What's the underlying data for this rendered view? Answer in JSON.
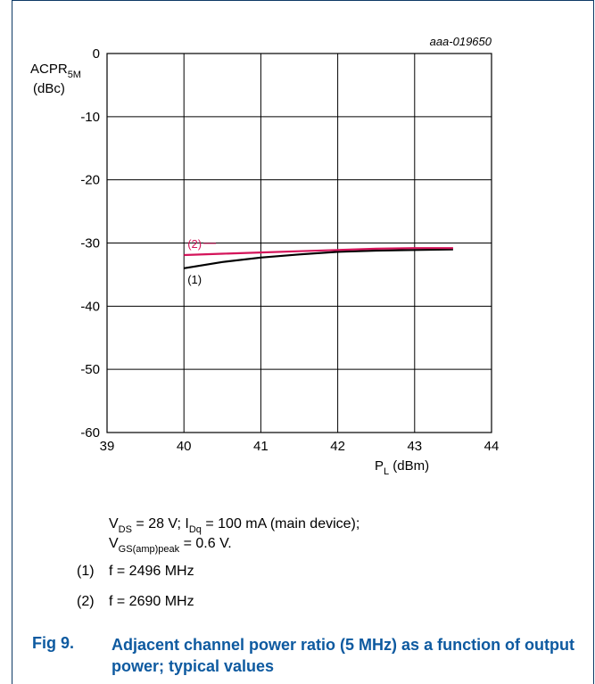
{
  "chart_data": {
    "type": "line",
    "code": "aaa-019650",
    "ylabel_main": "ACPR",
    "ylabel_sub": "5M",
    "ylabel_unit": "(dBc)",
    "xlabel_main": "P",
    "xlabel_sub": "L",
    "xlabel_unit": " (dBm)",
    "xlim": [
      39,
      44
    ],
    "ylim": [
      -60,
      0
    ],
    "xticks": [
      39,
      40,
      41,
      42,
      43,
      44
    ],
    "yticks": [
      0,
      -10,
      -20,
      -30,
      -40,
      -50,
      -60
    ],
    "grid": true,
    "series": [
      {
        "name": "(1)",
        "color": "#000000",
        "x": [
          40.0,
          40.5,
          41.0,
          41.5,
          42.0,
          42.5,
          43.0,
          43.5
        ],
        "y": [
          -34.0,
          -33.0,
          -32.3,
          -31.8,
          -31.4,
          -31.2,
          -31.1,
          -31.0
        ]
      },
      {
        "name": "(2)",
        "color": "#d4145a",
        "x": [
          40.0,
          40.5,
          41.0,
          41.5,
          42.0,
          42.5,
          43.0,
          43.5
        ],
        "y": [
          -31.9,
          -31.7,
          -31.5,
          -31.3,
          -31.1,
          -30.9,
          -30.8,
          -30.8
        ]
      }
    ]
  },
  "notes": {
    "cond1_a": "V",
    "cond1_a_sub": "DS",
    "cond1_b": " = 28 V; I",
    "cond1_b_sub": "Dq",
    "cond1_c": " = 100 mA (main device);",
    "cond2_a": "V",
    "cond2_a_sub": "GS(amp)peak",
    "cond2_b": " = 0.6 V.",
    "legend1_num": "(1)",
    "legend1_text": "f = 2496 MHz",
    "legend2_num": "(2)",
    "legend2_text": "f = 2690 MHz"
  },
  "figure": {
    "number": "Fig 9.",
    "caption": "Adjacent channel power ratio (5 MHz) as a function of output power; typical values"
  }
}
